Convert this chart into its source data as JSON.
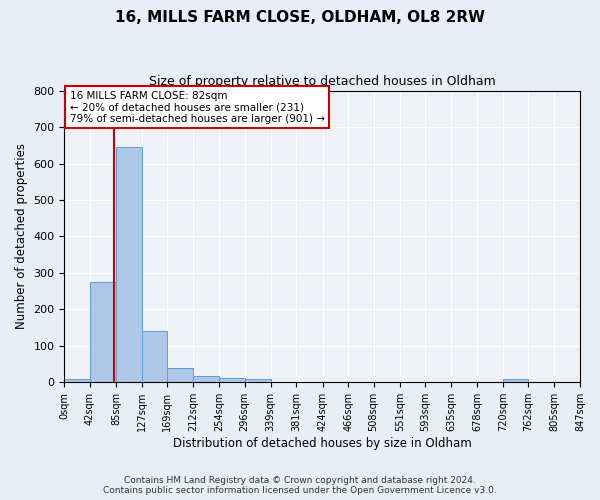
{
  "title": "16, MILLS FARM CLOSE, OLDHAM, OL8 2RW",
  "subtitle": "Size of property relative to detached houses in Oldham",
  "xlabel": "Distribution of detached houses by size in Oldham",
  "ylabel": "Number of detached properties",
  "bar_edges": [
    0,
    42,
    85,
    127,
    169,
    212,
    254,
    296,
    339,
    381,
    424,
    466,
    508,
    551,
    593,
    635,
    678,
    720,
    762,
    805,
    847
  ],
  "bar_heights": [
    8,
    275,
    645,
    140,
    38,
    18,
    13,
    10,
    0,
    0,
    0,
    0,
    0,
    0,
    0,
    0,
    0,
    8,
    0,
    0
  ],
  "bar_color": "#aec6e8",
  "bar_edge_color": "#5a9fd4",
  "property_line_x": 82,
  "property_line_color": "#cc0000",
  "ylim": [
    0,
    800
  ],
  "yticks": [
    0,
    100,
    200,
    300,
    400,
    500,
    600,
    700,
    800
  ],
  "x_tick_labels": [
    "0sqm",
    "42sqm",
    "85sqm",
    "127sqm",
    "169sqm",
    "212sqm",
    "254sqm",
    "296sqm",
    "339sqm",
    "381sqm",
    "424sqm",
    "466sqm",
    "508sqm",
    "551sqm",
    "593sqm",
    "635sqm",
    "678sqm",
    "720sqm",
    "762sqm",
    "805sqm",
    "847sqm"
  ],
  "annotation_line1": "16 MILLS FARM CLOSE: 82sqm",
  "annotation_line2": "← 20% of detached houses are smaller (231)",
  "annotation_line3": "79% of semi-detached houses are larger (901) →",
  "annotation_box_color": "#ffffff",
  "annotation_box_edgecolor": "#cc0000",
  "footer_line1": "Contains HM Land Registry data © Crown copyright and database right 2024.",
  "footer_line2": "Contains public sector information licensed under the Open Government Licence v3.0.",
  "background_color": "#e8eef5",
  "plot_bg_color": "#eef2f7"
}
